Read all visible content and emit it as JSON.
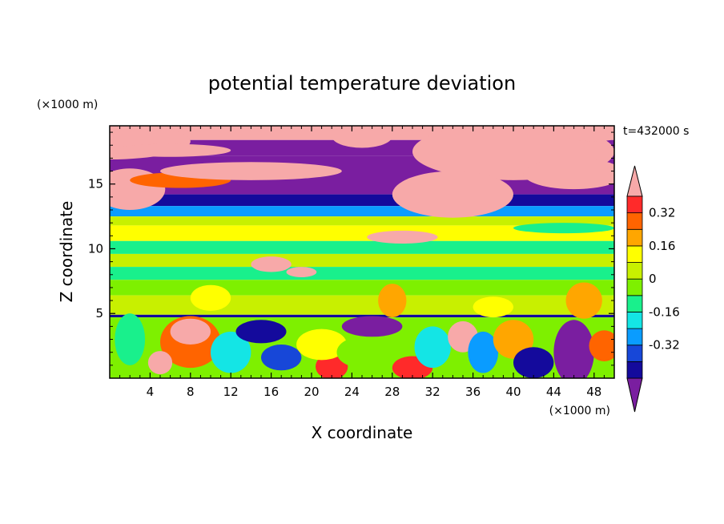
{
  "chart_data": {
    "type": "heatmap",
    "title": "potential temperature deviation",
    "xlabel": "X coordinate",
    "ylabel": "Z coordinate",
    "x_unit": "(×1000 m)",
    "y_unit": "(×1000 m)",
    "time_label": "t=432000 s",
    "xlim": [
      0,
      50
    ],
    "ylim": [
      0,
      19.5
    ],
    "x_ticks": [
      4,
      8,
      12,
      16,
      20,
      24,
      28,
      32,
      36,
      40,
      44,
      48
    ],
    "y_ticks": [
      5,
      10,
      15
    ],
    "grid": false,
    "colorbar": {
      "levels": [
        -0.48,
        -0.4,
        -0.32,
        -0.24,
        -0.16,
        -0.08,
        0,
        0.08,
        0.16,
        0.24,
        0.32,
        0.4
      ],
      "labels": [
        "-0.32",
        "-0.16",
        "0",
        "0.16",
        "0.32"
      ],
      "label_values": [
        -0.32,
        -0.16,
        0,
        0.16,
        0.32
      ],
      "colors": [
        "#7a1ea0",
        "#140a9c",
        "#1747d8",
        "#0a9cff",
        "#14e5e5",
        "#19f08c",
        "#7ef000",
        "#c8f000",
        "#ffff00",
        "#ffa600",
        "#ff6400",
        "#ff2a2a",
        "#f7a9a9"
      ],
      "extend": "both"
    },
    "bands": [
      {
        "z": [
          18.4,
          19.5
        ],
        "value": 0.45
      },
      {
        "z": [
          17.2,
          18.4
        ],
        "value": -0.5
      },
      {
        "z": [
          14.2,
          17.2
        ],
        "value": -0.5
      },
      {
        "z": [
          13.3,
          14.2
        ],
        "value": -0.42
      },
      {
        "z": [
          12.5,
          13.3
        ],
        "value": -0.3
      },
      {
        "z": [
          11.8,
          12.5
        ],
        "value": 0.05
      },
      {
        "z": [
          10.6,
          11.8
        ],
        "value": 0.1
      },
      {
        "z": [
          9.6,
          10.6
        ],
        "value": -0.1
      },
      {
        "z": [
          8.6,
          9.6
        ],
        "value": 0.02
      },
      {
        "z": [
          7.6,
          8.6
        ],
        "value": -0.1
      },
      {
        "z": [
          6.4,
          7.6
        ],
        "value": -0.04
      },
      {
        "z": [
          4.9,
          6.4
        ],
        "value": 0.04
      },
      {
        "z": [
          4.7,
          4.9
        ],
        "value": -0.45
      },
      {
        "z": [
          0,
          4.7
        ],
        "value": -0.05
      }
    ],
    "blobs": [
      {
        "x": 0,
        "z": 18.3,
        "rx": 8,
        "rz": 1.4,
        "value": 0.45
      },
      {
        "x": 6,
        "z": 17.6,
        "rx": 6,
        "rz": 0.5,
        "value": 0.45
      },
      {
        "x": 2,
        "z": 14.6,
        "rx": 3.5,
        "rz": 1.6,
        "value": 0.45
      },
      {
        "x": 7,
        "z": 15.3,
        "rx": 5,
        "rz": 0.6,
        "value": 0.3
      },
      {
        "x": 14,
        "z": 16.0,
        "rx": 9,
        "rz": 0.7,
        "value": 0.45
      },
      {
        "x": 25,
        "z": 18.7,
        "rx": 3,
        "rz": 0.9,
        "value": 0.45
      },
      {
        "x": 40,
        "z": 17.5,
        "rx": 10,
        "rz": 2.2,
        "value": 0.45
      },
      {
        "x": 46,
        "z": 15.8,
        "rx": 5,
        "rz": 1.2,
        "value": 0.45
      },
      {
        "x": 34,
        "z": 14.2,
        "rx": 6,
        "rz": 1.8,
        "value": 0.45
      },
      {
        "x": 48,
        "z": 18.9,
        "rx": 3,
        "rz": 0.6,
        "value": 0.45
      },
      {
        "x": 45,
        "z": 11.6,
        "rx": 5,
        "rz": 0.4,
        "value": -0.1
      },
      {
        "x": 29,
        "z": 10.9,
        "rx": 3.5,
        "rz": 0.5,
        "value": 0.45
      },
      {
        "x": 16,
        "z": 8.8,
        "rx": 2,
        "rz": 0.6,
        "value": 0.45
      },
      {
        "x": 19,
        "z": 8.2,
        "rx": 1.5,
        "rz": 0.4,
        "value": 0.45
      },
      {
        "x": 28,
        "z": 6.0,
        "rx": 1.4,
        "rz": 1.3,
        "value": 0.2
      },
      {
        "x": 47,
        "z": 6.0,
        "rx": 1.8,
        "rz": 1.4,
        "value": 0.2
      },
      {
        "x": 10,
        "z": 6.2,
        "rx": 2,
        "rz": 1.0,
        "value": 0.1
      },
      {
        "x": 38,
        "z": 5.5,
        "rx": 2,
        "rz": 0.8,
        "value": 0.1
      },
      {
        "x": 8,
        "z": 2.8,
        "rx": 3,
        "rz": 2.0,
        "value": 0.3
      },
      {
        "x": 8,
        "z": 3.6,
        "rx": 2,
        "rz": 1.0,
        "value": 0.45
      },
      {
        "x": 5,
        "z": 1.2,
        "rx": 1.2,
        "rz": 0.9,
        "value": 0.45
      },
      {
        "x": 12,
        "z": 2.0,
        "rx": 2,
        "rz": 1.6,
        "value": -0.2
      },
      {
        "x": 15,
        "z": 3.6,
        "rx": 2.5,
        "rz": 0.9,
        "value": -0.45
      },
      {
        "x": 17,
        "z": 1.6,
        "rx": 2,
        "rz": 1.0,
        "value": -0.4
      },
      {
        "x": 22,
        "z": 0.9,
        "rx": 1.6,
        "rz": 1.0,
        "value": 0.35
      },
      {
        "x": 21,
        "z": 2.6,
        "rx": 2.5,
        "rz": 1.2,
        "value": 0.15
      },
      {
        "x": 26,
        "z": 4.0,
        "rx": 3,
        "rz": 0.8,
        "value": -0.5
      },
      {
        "x": 25,
        "z": 2.0,
        "rx": 2.5,
        "rz": 1.2,
        "value": -0.08
      },
      {
        "x": 30,
        "z": 0.8,
        "rx": 2,
        "rz": 0.9,
        "value": 0.38
      },
      {
        "x": 32,
        "z": 2.4,
        "rx": 1.8,
        "rz": 1.6,
        "value": -0.2
      },
      {
        "x": 35,
        "z": 3.2,
        "rx": 1.5,
        "rz": 1.2,
        "value": 0.45
      },
      {
        "x": 37,
        "z": 2.0,
        "rx": 1.5,
        "rz": 1.6,
        "value": -0.3
      },
      {
        "x": 40,
        "z": 3.0,
        "rx": 2,
        "rz": 1.5,
        "value": 0.2
      },
      {
        "x": 42,
        "z": 1.2,
        "rx": 2,
        "rz": 1.2,
        "value": -0.45
      },
      {
        "x": 46,
        "z": 2.0,
        "rx": 2,
        "rz": 2.5,
        "value": -0.5
      },
      {
        "x": 49,
        "z": 2.5,
        "rx": 1.5,
        "rz": 1.2,
        "value": 0.25
      },
      {
        "x": 2,
        "z": 3.0,
        "rx": 1.5,
        "rz": 2.0,
        "value": -0.12
      }
    ]
  }
}
